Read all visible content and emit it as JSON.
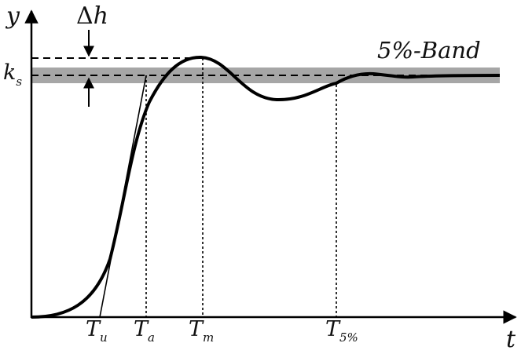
{
  "axes": {
    "y_label": "y",
    "x_label": "t"
  },
  "delta_h": {
    "symbol": "Δ",
    "var": "h"
  },
  "k_s": {
    "main": "k",
    "sub": "s"
  },
  "band": {
    "label": "5%-Band",
    "color": "#a6a6a6"
  },
  "ticks": [
    {
      "main": "T",
      "sub": "u"
    },
    {
      "main": "T",
      "sub": "a"
    },
    {
      "main": "T",
      "sub": "m"
    },
    {
      "main": "T",
      "sub": "5%"
    }
  ],
  "colors": {
    "curve": "#000000",
    "axis": "#000000"
  }
}
